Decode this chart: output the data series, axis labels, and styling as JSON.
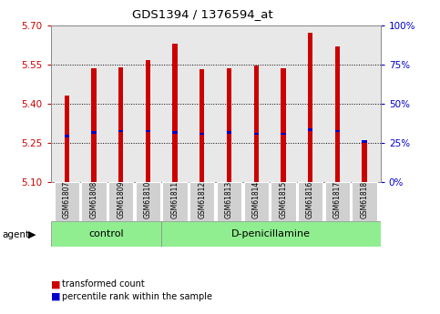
{
  "title": "GDS1394 / 1376594_at",
  "samples": [
    "GSM61807",
    "GSM61808",
    "GSM61809",
    "GSM61810",
    "GSM61811",
    "GSM61812",
    "GSM61813",
    "GSM61814",
    "GSM61815",
    "GSM61816",
    "GSM61817",
    "GSM61818"
  ],
  "bar_top": [
    5.43,
    5.535,
    5.54,
    5.565,
    5.63,
    5.53,
    5.535,
    5.545,
    5.535,
    5.67,
    5.62,
    5.25
  ],
  "bar_bottom": [
    5.1,
    5.1,
    5.1,
    5.1,
    5.1,
    5.1,
    5.1,
    5.1,
    5.1,
    5.1,
    5.1,
    5.1
  ],
  "percentile_values": [
    5.275,
    5.29,
    5.295,
    5.295,
    5.29,
    5.285,
    5.29,
    5.285,
    5.285,
    5.3,
    5.295,
    5.255
  ],
  "ylim_left": [
    5.1,
    5.7
  ],
  "yticks_left": [
    5.1,
    5.25,
    5.4,
    5.55,
    5.7
  ],
  "yticks_right": [
    0,
    25,
    50,
    75,
    100
  ],
  "bar_color": "#cc0000",
  "percentile_color": "#0000cc",
  "plot_bg": "#e8e8e8",
  "control_samples": 4,
  "group_labels": [
    "control",
    "D-penicillamine"
  ],
  "group_bg": "#90ee90",
  "xlabel_color": "#cc0000",
  "ylabel_right_color": "#0000cc",
  "legend_items": [
    "transformed count",
    "percentile rank within the sample"
  ],
  "legend_colors": [
    "#cc0000",
    "#0000cc"
  ],
  "agent_label": "agent"
}
